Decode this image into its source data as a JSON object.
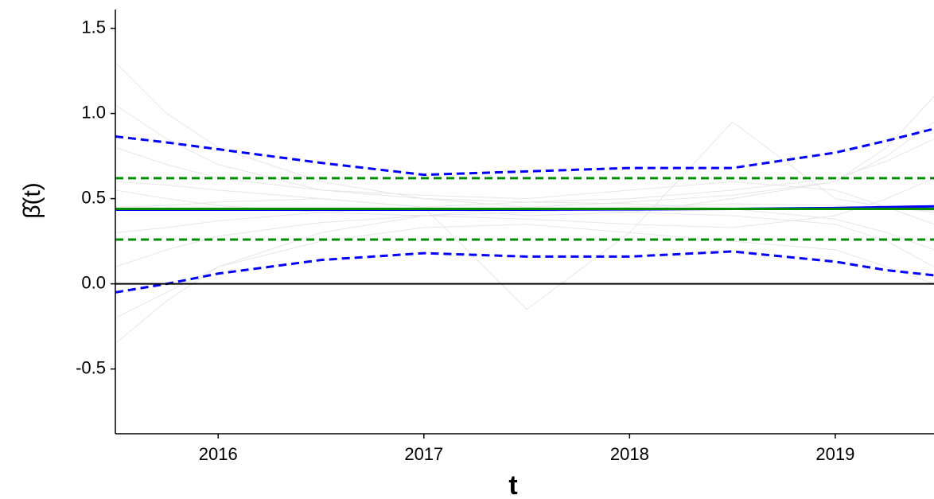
{
  "chart_data": {
    "type": "line",
    "x_label": "t",
    "y_label": "β̂(t)",
    "x": [
      2015.5,
      2015.75,
      2016,
      2016.5,
      2017,
      2017.5,
      2018,
      2018.5,
      2019,
      2019.25,
      2019.48
    ],
    "xlim": [
      2015.5,
      2019.48
    ],
    "xticks": [
      2016,
      2017,
      2018,
      2019
    ],
    "ylim": [
      -0.88,
      1.61
    ],
    "yticks": [
      {
        "value": -0.5,
        "label": "-0.5"
      },
      {
        "value": 0,
        "label": "0.0"
      },
      {
        "value": 0.5,
        "label": "0.5"
      },
      {
        "value": 1,
        "label": "1.0"
      },
      {
        "value": 1.5,
        "label": "1.5"
      }
    ],
    "hline": 0,
    "series": [
      {
        "color": "#e6e6e6",
        "values": [
          1.05,
          0.85,
          0.7,
          0.55,
          0.5,
          0.48,
          0.5,
          0.55,
          0.62,
          0.72,
          0.85
        ]
      },
      {
        "color": "#e6e6e6",
        "values": [
          -0.2,
          -0.05,
          0.1,
          0.25,
          0.33,
          0.35,
          0.3,
          0.25,
          0.2,
          0.1,
          0.0
        ]
      },
      {
        "color": "#e6e6e6",
        "values": [
          0.6,
          0.58,
          0.55,
          0.5,
          0.45,
          0.4,
          0.42,
          0.5,
          0.6,
          0.75,
          0.95
        ]
      },
      {
        "color": "#e6e6e6",
        "values": [
          0.3,
          0.33,
          0.37,
          0.42,
          0.45,
          0.48,
          0.47,
          0.44,
          0.38,
          0.3,
          0.2
        ]
      },
      {
        "color": "#e6e6e6",
        "values": [
          0.8,
          0.7,
          0.62,
          0.55,
          0.52,
          0.5,
          0.55,
          0.6,
          0.55,
          0.45,
          0.35
        ]
      },
      {
        "color": "#e6e6e6",
        "values": [
          0.1,
          0.2,
          0.28,
          0.36,
          0.4,
          0.38,
          0.35,
          0.33,
          0.4,
          0.5,
          0.62
        ]
      },
      {
        "color": "#e6e6e6",
        "values": [
          0.45,
          0.46,
          0.48,
          0.5,
          0.45,
          -0.15,
          0.3,
          0.95,
          0.5,
          0.45,
          0.42
        ]
      },
      {
        "color": "#e6e6e6",
        "values": [
          1.3,
          1.0,
          0.8,
          0.6,
          0.5,
          0.45,
          0.42,
          0.4,
          0.35,
          0.25,
          0.1
        ]
      },
      {
        "color": "#e6e6e6",
        "values": [
          -0.35,
          -0.1,
          0.1,
          0.3,
          0.4,
          0.45,
          0.48,
          0.52,
          0.6,
          0.8,
          1.1
        ]
      },
      {
        "color": "#e6e6e6",
        "values": [
          0.55,
          0.5,
          0.46,
          0.42,
          0.4,
          0.42,
          0.45,
          0.47,
          0.46,
          0.44,
          0.43
        ]
      },
      {
        "color": "#0000ff",
        "dash": true,
        "values": [
          0.865,
          0.83,
          0.79,
          0.71,
          0.64,
          0.66,
          0.68,
          0.68,
          0.77,
          0.84,
          0.91
        ]
      },
      {
        "color": "#0000ff",
        "dash": true,
        "values": [
          -0.05,
          0.0,
          0.06,
          0.14,
          0.18,
          0.16,
          0.16,
          0.19,
          0.13,
          0.08,
          0.05
        ]
      },
      {
        "color": "#008b00",
        "dash": true,
        "values": [
          0.62,
          0.62,
          0.62,
          0.62,
          0.62,
          0.62,
          0.62,
          0.62,
          0.62,
          0.62,
          0.62
        ]
      },
      {
        "color": "#008b00",
        "dash": true,
        "values": [
          0.26,
          0.26,
          0.26,
          0.26,
          0.26,
          0.26,
          0.26,
          0.26,
          0.26,
          0.26,
          0.26
        ]
      },
      {
        "color": "#0000ff",
        "values": [
          0.435,
          0.435,
          0.435,
          0.435,
          0.435,
          0.435,
          0.437,
          0.44,
          0.445,
          0.45,
          0.455
        ]
      },
      {
        "color": "#008b00",
        "values": [
          0.44,
          0.44,
          0.44,
          0.44,
          0.44,
          0.44,
          0.44,
          0.44,
          0.44,
          0.44,
          0.44
        ]
      }
    ]
  }
}
